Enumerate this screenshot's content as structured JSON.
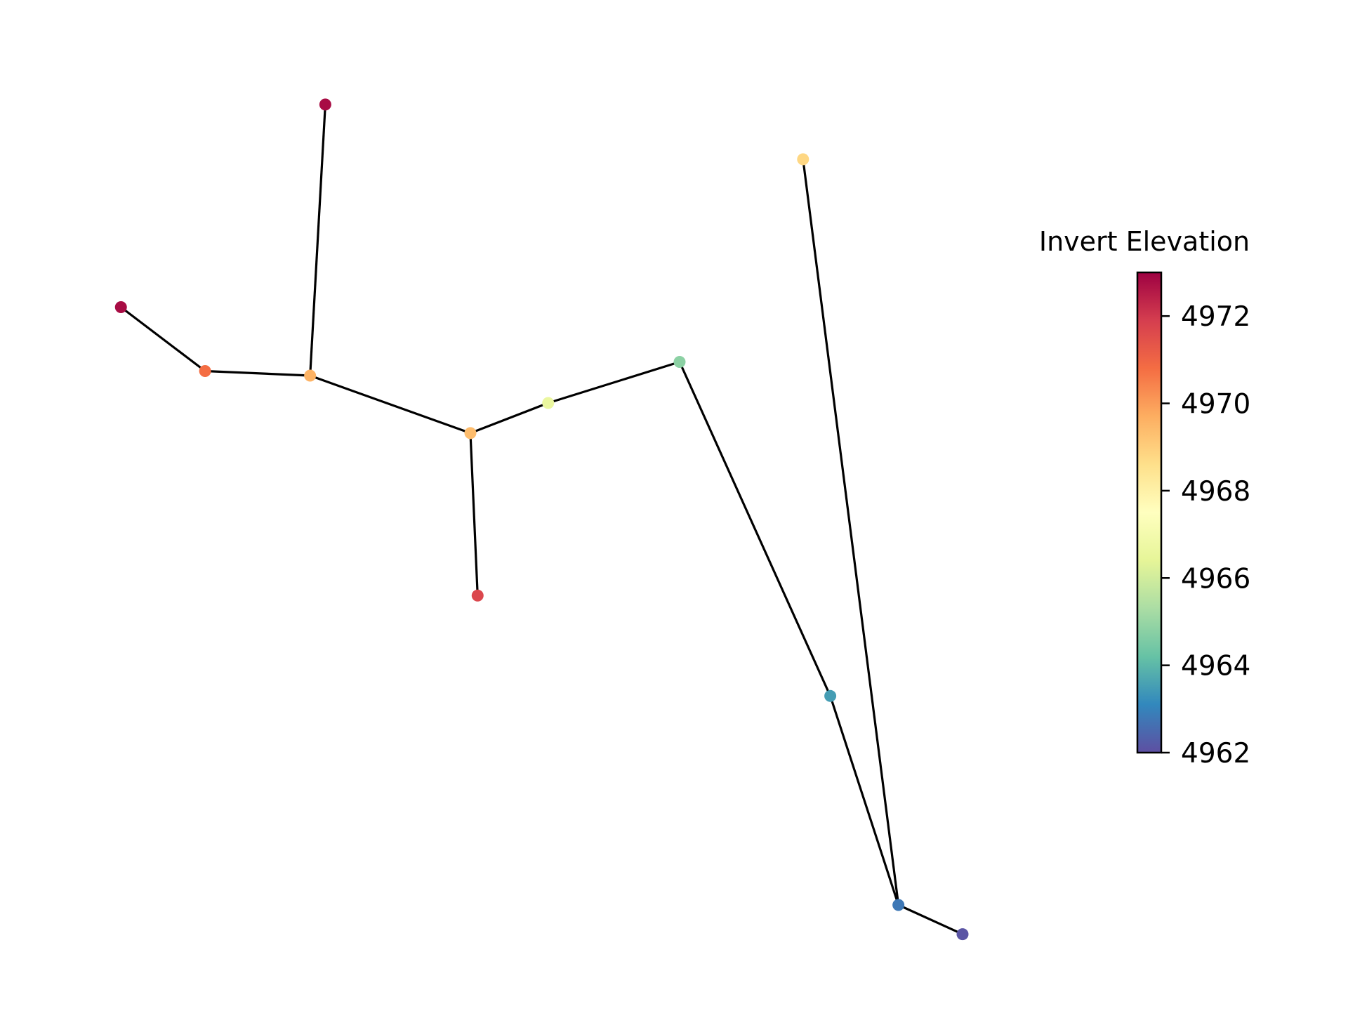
{
  "colorbar": {
    "title": "Invert Elevation",
    "min": 4962,
    "max": 4973,
    "ticks": [
      4962,
      4964,
      4966,
      4968,
      4970,
      4972
    ],
    "colormap": "Spectral_r",
    "stops": [
      "#5e4fa2",
      "#3288bd",
      "#66c2a5",
      "#abdda4",
      "#e6f598",
      "#ffffbf",
      "#fee08b",
      "#fdae61",
      "#f46d43",
      "#d53e4f",
      "#9e0142"
    ]
  },
  "chart_data": {
    "type": "network",
    "node_color_label": "Invert Elevation",
    "nodes": [
      {
        "id": "n1",
        "x": -6.13,
        "y": 2.25,
        "invert_elevation": 4972.8
      },
      {
        "id": "n2",
        "x": -5.08,
        "y": 1.55,
        "invert_elevation": 4970.8
      },
      {
        "id": "n3",
        "x": -3.77,
        "y": 1.5,
        "invert_elevation": 4969.6
      },
      {
        "id": "n4",
        "x": -3.58,
        "y": 4.47,
        "invert_elevation": 4972.8
      },
      {
        "id": "n5",
        "x": -1.77,
        "y": 0.87,
        "invert_elevation": 4969.4
      },
      {
        "id": "n6",
        "x": -1.68,
        "y": -0.91,
        "invert_elevation": 4971.7
      },
      {
        "id": "n7",
        "x": -0.8,
        "y": 1.2,
        "invert_elevation": 4966.6
      },
      {
        "id": "n8",
        "x": 0.84,
        "y": 1.65,
        "invert_elevation": 4964.8
      },
      {
        "id": "n9",
        "x": 2.38,
        "y": 3.87,
        "invert_elevation": 4968.8
      },
      {
        "id": "n10",
        "x": 2.72,
        "y": -2.01,
        "invert_elevation": 4963.5
      },
      {
        "id": "n11",
        "x": 3.57,
        "y": -4.3,
        "invert_elevation": 4962.8
      },
      {
        "id": "n12",
        "x": 4.37,
        "y": -4.62,
        "invert_elevation": 4962.1
      }
    ],
    "edges": [
      [
        "n1",
        "n2"
      ],
      [
        "n2",
        "n3"
      ],
      [
        "n4",
        "n3"
      ],
      [
        "n3",
        "n5"
      ],
      [
        "n5",
        "n6"
      ],
      [
        "n5",
        "n7"
      ],
      [
        "n7",
        "n8"
      ],
      [
        "n8",
        "n10"
      ],
      [
        "n10",
        "n11"
      ],
      [
        "n9",
        "n11"
      ],
      [
        "n11",
        "n12"
      ]
    ],
    "xlim": [
      -6.5,
      5.5
    ],
    "ylim": [
      -5.0,
      5.0
    ]
  }
}
